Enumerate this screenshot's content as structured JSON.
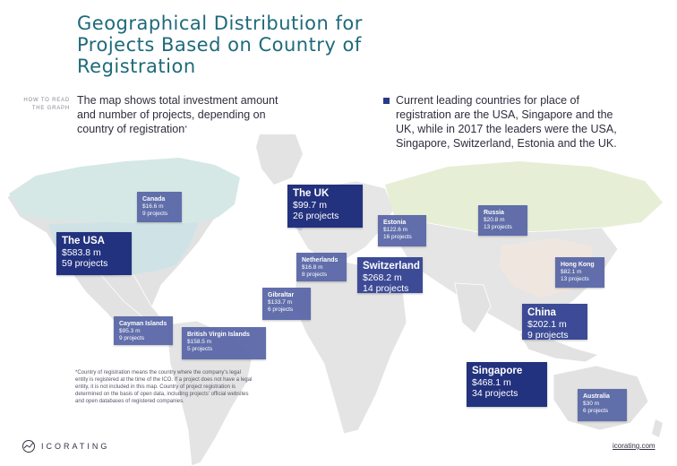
{
  "header": {
    "title": "Geographical Distribution for Projects Based on Country of Registration",
    "how_to_read": "HOW TO READ THE GRAPH",
    "description": "The map shows total investment amount and number of projects, depending on country of registration",
    "description_mark": "*",
    "note": "Current leading countries for place of registration are the USA, Singapore and the UK, while in 2017 the leaders were the USA, Singapore, Switzerland, Estonia and the UK."
  },
  "countries": [
    {
      "name": "The USA",
      "amount": "$583.8 m",
      "projects": "59 projects",
      "size": "lg",
      "shade": "dark"
    },
    {
      "name": "The UK",
      "amount": "$99.7 m",
      "projects": "26 projects",
      "size": "lg",
      "shade": "dark"
    },
    {
      "name": "Singapore",
      "amount": "$468.1 m",
      "projects": "34 projects",
      "size": "lg",
      "shade": "dark"
    },
    {
      "name": "Switzerland",
      "amount": "$268.2 m",
      "projects": "14 projects",
      "size": "lg",
      "shade": "mid"
    },
    {
      "name": "China",
      "amount": "$202.1 m",
      "projects": "9 projects",
      "size": "lg",
      "shade": "mid"
    },
    {
      "name": "Canada",
      "amount": "$16.6 m",
      "projects": "9 projects",
      "size": "sm",
      "shade": "light"
    },
    {
      "name": "Estonia",
      "amount": "$122.6 m",
      "projects": "16 projects",
      "size": "sm",
      "shade": "light"
    },
    {
      "name": "Russia",
      "amount": "$20.8 m",
      "projects": "13 projects",
      "size": "sm",
      "shade": "light"
    },
    {
      "name": "Netherlands",
      "amount": "$16.8 m",
      "projects": "8 projects",
      "size": "sm",
      "shade": "light"
    },
    {
      "name": "Hong Kong",
      "amount": "$82.1 m",
      "projects": "13 projects",
      "size": "sm",
      "shade": "light"
    },
    {
      "name": "Gibraltar",
      "amount": "$133.7 m",
      "projects": "6 projects",
      "size": "sm",
      "shade": "light"
    },
    {
      "name": "Cayman Islands",
      "amount": "$95.3 m",
      "projects": "9 projects",
      "size": "sm",
      "shade": "light"
    },
    {
      "name": "British Virgin Islands",
      "amount": "$158.5 m",
      "projects": "5 projects",
      "size": "sm",
      "shade": "light"
    },
    {
      "name": "Australia",
      "amount": "$30 m",
      "projects": "6 projects",
      "size": "sm",
      "shade": "light"
    }
  ],
  "footnote": "*Country of registration means the country where the company's legal entity is registered at the time of the ICO. If a project does not have a legal entity, it is not included in this map. Country of project registration is determined on the basis of open data, including projects' official websites and open databases of registered companies.",
  "footer": {
    "brand": "ICORATING",
    "site": "icorating.com"
  },
  "colors": {
    "title": "#1e6a7a",
    "dark_box": "#23327e",
    "mid_box": "#3d4b96",
    "light_box": "#5a68a8"
  }
}
